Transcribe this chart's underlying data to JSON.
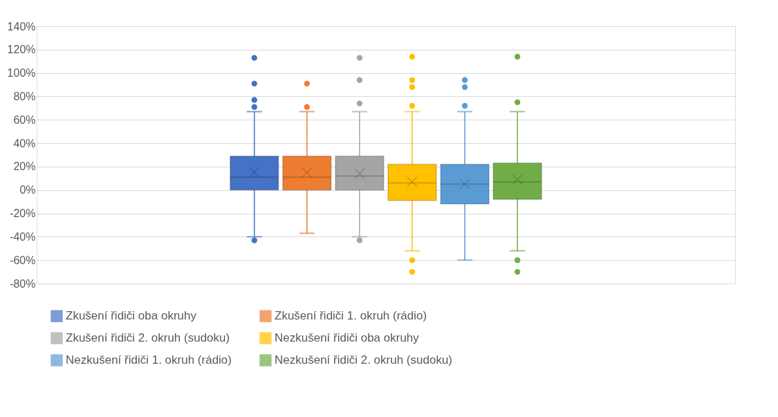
{
  "chart_data": {
    "type": "box",
    "categories": [
      null
    ],
    "series": [
      {
        "name": "Zkušení řidiči oba okruhy",
        "color": "#4472c4",
        "boxes": [
          {
            "low": -40,
            "q1": 0,
            "median": 11,
            "q3": 29,
            "high": 67,
            "mean": 15,
            "outliers": [
              113,
              91,
              77,
              71,
              -43
            ]
          }
        ]
      },
      {
        "name": "Zkušení řidiči 1. okruh (rádio)",
        "color": "#ed7d31",
        "boxes": [
          {
            "low": -37,
            "q1": 0,
            "median": 11,
            "q3": 29,
            "high": 67,
            "mean": 15,
            "outliers": [
              91,
              71
            ]
          }
        ]
      },
      {
        "name": "Zkušení řidiči 2. okruh (sudoku)",
        "color": "#a5a5a5",
        "boxes": [
          {
            "low": -40,
            "q1": 0,
            "median": 12,
            "q3": 29,
            "high": 67,
            "mean": 14,
            "outliers": [
              113,
              94,
              74,
              -43
            ]
          }
        ]
      },
      {
        "name": "Nezkušení řidiči oba okruhy",
        "color": "#ffc000",
        "boxes": [
          {
            "low": -52,
            "q1": -9,
            "median": 6,
            "q3": 22,
            "high": 67,
            "mean": 7,
            "outliers": [
              114,
              94,
              88,
              72,
              -60,
              -70
            ]
          }
        ]
      },
      {
        "name": "Nezkušení řidiči 1. okruh (rádio)",
        "color": "#5b9bd5",
        "boxes": [
          {
            "low": -60,
            "q1": -12,
            "median": 5,
            "q3": 22,
            "high": 67,
            "mean": 5,
            "outliers": [
              94,
              88,
              72
            ]
          }
        ]
      },
      {
        "name": "Nezkušení řidiči 2. okruh (sudoku)",
        "color": "#70ad47",
        "boxes": [
          {
            "low": -52,
            "q1": -8,
            "median": 7,
            "q3": 23,
            "high": 67,
            "mean": 9,
            "outliers": [
              114,
              75,
              -60,
              -70
            ]
          }
        ]
      }
    ],
    "ylim": [
      -80,
      140
    ],
    "yticks": [
      {
        "value": -80,
        "label": "-80%"
      },
      {
        "value": -60,
        "label": "-60%"
      },
      {
        "value": -40,
        "label": "-40%"
      },
      {
        "value": -20,
        "label": "-20%"
      },
      {
        "value": 0,
        "label": "0%"
      },
      {
        "value": 20,
        "label": "20%"
      },
      {
        "value": 40,
        "label": "40%"
      },
      {
        "value": 60,
        "label": "60%"
      },
      {
        "value": 80,
        "label": "80%"
      },
      {
        "value": 100,
        "label": "100%"
      },
      {
        "value": 120,
        "label": "120%"
      },
      {
        "value": 140,
        "label": "140%"
      }
    ],
    "grid": "y",
    "legend": "bottom",
    "tick_labels": "y"
  }
}
